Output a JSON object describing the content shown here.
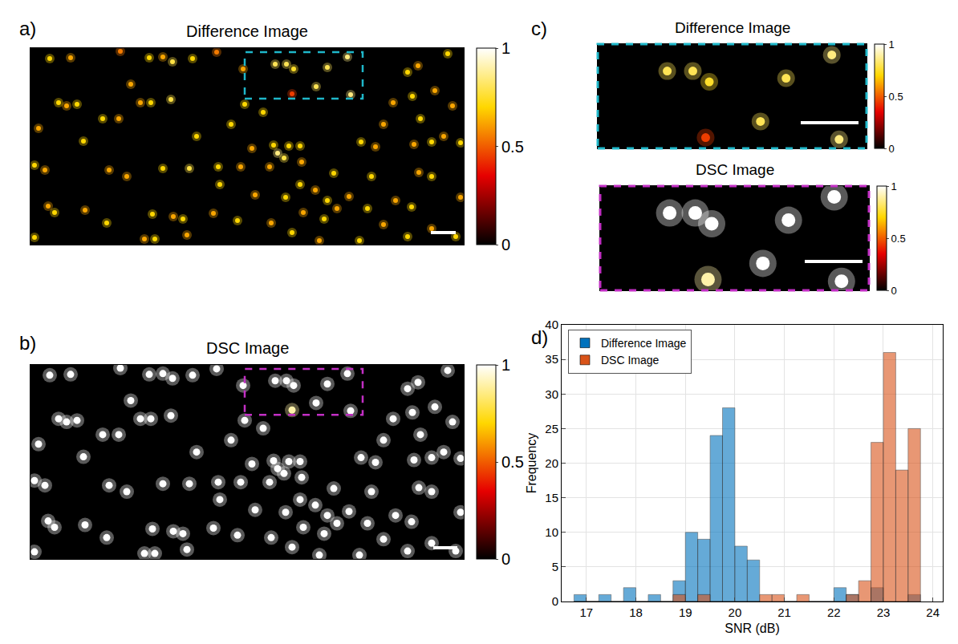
{
  "chart_data": [
    {
      "type": "image",
      "label": "a)",
      "title": "Difference Image",
      "xlim": [
        0,
        540
      ],
      "ylim": [
        245,
        0
      ],
      "tick_labels": false,
      "colorbar": {
        "range": [
          0,
          1
        ],
        "ticks": [
          0,
          0.5,
          1
        ]
      },
      "spots": [
        [
          24,
          13,
          0.7
        ],
        [
          50,
          12,
          0.62
        ],
        [
          112,
          4,
          0.55
        ],
        [
          148,
          12,
          0.7
        ],
        [
          165,
          11,
          0.62
        ],
        [
          177,
          17,
          0.78
        ],
        [
          202,
          13,
          0.7
        ],
        [
          232,
          5,
          0.55
        ],
        [
          265,
          26,
          0.62
        ],
        [
          35,
          68,
          0.7
        ],
        [
          45,
          72,
          0.62
        ],
        [
          58,
          70,
          0.7
        ],
        [
          137,
          68,
          0.62
        ],
        [
          150,
          68,
          0.7
        ],
        [
          175,
          64,
          0.78
        ],
        [
          90,
          88,
          0.7
        ],
        [
          110,
          88,
          0.62
        ],
        [
          66,
          116,
          0.7
        ],
        [
          98,
          152,
          0.62
        ],
        [
          5,
          146,
          0.7
        ],
        [
          18,
          152,
          0.62
        ],
        [
          165,
          150,
          0.7
        ],
        [
          198,
          150,
          0.78
        ],
        [
          234,
          148,
          0.7
        ],
        [
          262,
          148,
          0.62
        ],
        [
          236,
          170,
          0.7
        ],
        [
          22,
          197,
          0.62
        ],
        [
          30,
          205,
          0.7
        ],
        [
          68,
          202,
          0.62
        ],
        [
          95,
          218,
          0.7
        ],
        [
          120,
          160,
          0.62
        ],
        [
          152,
          207,
          0.7
        ],
        [
          178,
          210,
          0.62
        ],
        [
          190,
          213,
          0.7
        ],
        [
          228,
          206,
          0.62
        ],
        [
          258,
          215,
          0.7
        ],
        [
          142,
          238,
          0.62
        ],
        [
          155,
          238,
          0.7
        ],
        [
          195,
          233,
          0.62
        ],
        [
          5,
          236,
          0.7
        ],
        [
          276,
          125,
          0.62
        ],
        [
          303,
          121,
          0.7
        ],
        [
          308,
          131,
          0.85
        ],
        [
          316,
          137,
          0.78
        ],
        [
          322,
          122,
          0.7
        ],
        [
          336,
          122,
          0.7
        ],
        [
          338,
          142,
          0.62
        ],
        [
          336,
          170,
          0.7
        ],
        [
          355,
          177,
          0.62
        ],
        [
          378,
          156,
          0.7
        ],
        [
          412,
          117,
          0.7
        ],
        [
          430,
          123,
          0.62
        ],
        [
          425,
          160,
          0.7
        ],
        [
          397,
          185,
          0.62
        ],
        [
          370,
          190,
          0.7
        ],
        [
          298,
          148,
          0.62
        ],
        [
          318,
          186,
          0.7
        ],
        [
          340,
          205,
          0.62
        ],
        [
          366,
          213,
          0.7
        ],
        [
          382,
          200,
          0.62
        ],
        [
          420,
          200,
          0.7
        ],
        [
          455,
          190,
          0.62
        ],
        [
          475,
          198,
          0.7
        ],
        [
          484,
          155,
          0.62
        ],
        [
          500,
          160,
          0.7
        ],
        [
          478,
          120,
          0.62
        ],
        [
          500,
          117,
          0.7
        ],
        [
          515,
          110,
          0.62
        ],
        [
          536,
          118,
          0.7
        ],
        [
          452,
          68,
          0.62
        ],
        [
          476,
          60,
          0.7
        ],
        [
          504,
          53,
          0.62
        ],
        [
          486,
          88,
          0.7
        ],
        [
          526,
          72,
          0.62
        ],
        [
          470,
          30,
          0.7
        ],
        [
          483,
          22,
          0.62
        ],
        [
          520,
          7,
          0.7
        ],
        [
          536,
          186,
          0.62
        ],
        [
          530,
          235,
          0.7
        ],
        [
          500,
          225,
          0.62
        ],
        [
          470,
          235,
          0.7
        ],
        [
          440,
          220,
          0.62
        ],
        [
          410,
          240,
          0.7
        ],
        [
          300,
          218,
          0.62
        ],
        [
          326,
          230,
          0.7
        ],
        [
          360,
          240,
          0.62
        ],
        [
          267,
          70,
          0.7
        ],
        [
          280,
          183,
          0.62
        ],
        [
          207,
          110,
          0.7
        ],
        [
          125,
          45,
          0.62
        ],
        [
          250,
          95,
          0.7
        ],
        [
          440,
          95,
          0.62
        ],
        [
          290,
          80,
          0.7
        ],
        [
          10,
          100,
          0.62
        ],
        [
          305,
          20,
          0.8
        ],
        [
          319,
          20,
          0.8
        ],
        [
          328,
          26,
          0.75
        ],
        [
          370,
          24,
          0.8
        ],
        [
          395,
          11,
          0.85
        ],
        [
          356,
          48,
          0.8
        ],
        [
          326,
          57,
          0.45
        ],
        [
          399,
          58,
          0.85
        ]
      ]
    },
    {
      "type": "image",
      "label": "b)",
      "title": "DSC Image",
      "xlim": [
        0,
        540
      ],
      "ylim": [
        245,
        0
      ],
      "tick_labels": false,
      "colorbar": {
        "range": [
          0,
          1
        ],
        "ticks": [
          0,
          0.5,
          1
        ]
      },
      "spots": [
        [
          24,
          13,
          1
        ],
        [
          50,
          12,
          1
        ],
        [
          112,
          4,
          1
        ],
        [
          148,
          12,
          1
        ],
        [
          165,
          11,
          1
        ],
        [
          177,
          17,
          1
        ],
        [
          202,
          13,
          1
        ],
        [
          232,
          5,
          1
        ],
        [
          265,
          26,
          1
        ],
        [
          35,
          68,
          1
        ],
        [
          45,
          72,
          1
        ],
        [
          58,
          70,
          1
        ],
        [
          137,
          68,
          1
        ],
        [
          150,
          68,
          1
        ],
        [
          175,
          64,
          1
        ],
        [
          90,
          88,
          1
        ],
        [
          110,
          88,
          1
        ],
        [
          66,
          116,
          1
        ],
        [
          98,
          152,
          1
        ],
        [
          5,
          146,
          1
        ],
        [
          18,
          152,
          1
        ],
        [
          165,
          150,
          1
        ],
        [
          198,
          150,
          1
        ],
        [
          234,
          148,
          1
        ],
        [
          262,
          148,
          1
        ],
        [
          236,
          170,
          1
        ],
        [
          22,
          197,
          1
        ],
        [
          30,
          205,
          1
        ],
        [
          68,
          202,
          1
        ],
        [
          95,
          218,
          1
        ],
        [
          120,
          160,
          1
        ],
        [
          152,
          207,
          1
        ],
        [
          178,
          210,
          1
        ],
        [
          190,
          213,
          1
        ],
        [
          228,
          206,
          1
        ],
        [
          258,
          215,
          1
        ],
        [
          142,
          238,
          1
        ],
        [
          155,
          238,
          1
        ],
        [
          195,
          233,
          1
        ],
        [
          5,
          236,
          1
        ],
        [
          276,
          125,
          1
        ],
        [
          303,
          121,
          1
        ],
        [
          308,
          131,
          1
        ],
        [
          316,
          137,
          1
        ],
        [
          322,
          122,
          1
        ],
        [
          336,
          122,
          1
        ],
        [
          338,
          142,
          1
        ],
        [
          336,
          170,
          1
        ],
        [
          355,
          177,
          1
        ],
        [
          378,
          156,
          1
        ],
        [
          412,
          117,
          1
        ],
        [
          430,
          123,
          1
        ],
        [
          425,
          160,
          1
        ],
        [
          397,
          185,
          1
        ],
        [
          370,
          190,
          1
        ],
        [
          298,
          148,
          1
        ],
        [
          318,
          186,
          1
        ],
        [
          340,
          205,
          1
        ],
        [
          366,
          213,
          1
        ],
        [
          382,
          200,
          1
        ],
        [
          420,
          200,
          1
        ],
        [
          455,
          190,
          1
        ],
        [
          475,
          198,
          1
        ],
        [
          484,
          155,
          1
        ],
        [
          500,
          160,
          1
        ],
        [
          478,
          120,
          1
        ],
        [
          500,
          117,
          1
        ],
        [
          515,
          110,
          1
        ],
        [
          536,
          118,
          1
        ],
        [
          452,
          68,
          1
        ],
        [
          476,
          60,
          1
        ],
        [
          504,
          53,
          1
        ],
        [
          486,
          88,
          1
        ],
        [
          526,
          72,
          1
        ],
        [
          470,
          30,
          1
        ],
        [
          483,
          22,
          1
        ],
        [
          520,
          7,
          1
        ],
        [
          536,
          186,
          1
        ],
        [
          530,
          235,
          1
        ],
        [
          500,
          225,
          1
        ],
        [
          470,
          235,
          1
        ],
        [
          440,
          220,
          1
        ],
        [
          410,
          240,
          1
        ],
        [
          300,
          218,
          1
        ],
        [
          326,
          230,
          1
        ],
        [
          360,
          240,
          1
        ],
        [
          267,
          70,
          1
        ],
        [
          280,
          183,
          1
        ],
        [
          207,
          110,
          1
        ],
        [
          125,
          45,
          1
        ],
        [
          250,
          95,
          1
        ],
        [
          440,
          95,
          1
        ],
        [
          290,
          80,
          1
        ],
        [
          10,
          100,
          1
        ],
        [
          305,
          20,
          1
        ],
        [
          319,
          20,
          1
        ],
        [
          328,
          26,
          1
        ],
        [
          370,
          24,
          1
        ],
        [
          395,
          11,
          1
        ],
        [
          356,
          48,
          1
        ],
        [
          326,
          57,
          0.9
        ],
        [
          399,
          58,
          1
        ]
      ]
    },
    {
      "type": "image",
      "label": "c)",
      "title": "Difference Image",
      "xlim": [
        267,
        414
      ],
      "ylim": [
        63,
        5
      ],
      "tick_labels": false,
      "color": "#1fb7c9",
      "colorbar": {
        "range": [
          0,
          1
        ],
        "ticks": [
          0,
          0.5,
          1
        ]
      },
      "spots": [
        [
          305,
          20,
          0.8
        ],
        [
          319,
          20,
          0.8
        ],
        [
          328,
          26,
          0.75
        ],
        [
          370,
          24,
          0.8
        ],
        [
          395,
          11,
          0.85
        ],
        [
          356,
          48,
          0.8
        ],
        [
          326,
          57,
          0.45
        ],
        [
          399,
          58,
          0.85
        ]
      ]
    },
    {
      "type": "image",
      "title": "DSC Image",
      "xlim": [
        267,
        414
      ],
      "ylim": [
        63,
        5
      ],
      "tick_labels": false,
      "color": "#c22fc4",
      "colorbar": {
        "range": [
          0,
          1
        ],
        "ticks": [
          0,
          0.5,
          1
        ]
      },
      "spots": [
        [
          305,
          20,
          1
        ],
        [
          319,
          20,
          1
        ],
        [
          328,
          26,
          1
        ],
        [
          370,
          24,
          1
        ],
        [
          395,
          11,
          1
        ],
        [
          356,
          48,
          1
        ],
        [
          326,
          57,
          0.9
        ],
        [
          399,
          58,
          1
        ]
      ]
    },
    {
      "type": "histogram",
      "label": "d)",
      "x_label": "SNR (dB)",
      "y_label": "Frequency",
      "bins": [
        16.75,
        17,
        17.25,
        17.5,
        17.75,
        18,
        18.25,
        18.5,
        18.75,
        19,
        19.25,
        19.5,
        19.75,
        20,
        20.25,
        20.5,
        20.75,
        21,
        21.25,
        21.5,
        21.75,
        22,
        22.25,
        22.5,
        22.75,
        23,
        23.25,
        23.5,
        23.75
      ],
      "series": [
        {
          "name": "Difference Image",
          "color": "#0072bd",
          "values": [
            1,
            0,
            1,
            0,
            2,
            0,
            1,
            0,
            3,
            10,
            9,
            24,
            28,
            8,
            6,
            0,
            0,
            0,
            0,
            0,
            0,
            2,
            1,
            0,
            2,
            0,
            0,
            1
          ]
        },
        {
          "name": "DSC Image",
          "color": "#d95319",
          "values": [
            0,
            0,
            0,
            0,
            0,
            0,
            0,
            0,
            1,
            0,
            1,
            0,
            0,
            0,
            0,
            1,
            1,
            0,
            1,
            0,
            0,
            0,
            1,
            3,
            23,
            36,
            19,
            25
          ]
        }
      ],
      "xlim": [
        16.5,
        24.2
      ],
      "xticks": [
        17,
        18,
        19,
        20,
        21,
        22,
        23,
        24
      ],
      "ylim": [
        0,
        40
      ],
      "yticks": [
        0,
        5,
        10,
        15,
        20,
        25,
        30,
        35,
        40
      ],
      "grid": true,
      "legend": "upper left"
    }
  ]
}
